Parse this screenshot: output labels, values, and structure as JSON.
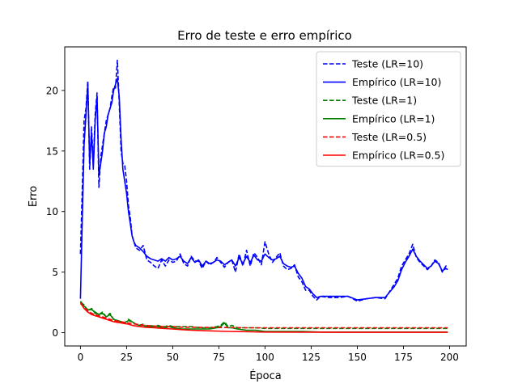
{
  "chart_data": {
    "type": "line",
    "title": "Erro de teste e erro empírico",
    "xlabel": "Época",
    "ylabel": "Erro",
    "xlim": [
      -8.5,
      209
    ],
    "ylim": [
      -1.1,
      23.6
    ],
    "xticks": [
      0,
      25,
      50,
      75,
      100,
      125,
      150,
      175,
      200
    ],
    "yticks": [
      0,
      5,
      10,
      15,
      20
    ],
    "grid": false,
    "legend_position": "top-right",
    "series": [
      {
        "name": "Teste (LR=10)",
        "color": "#0000ff",
        "style": "dashed",
        "x": [
          0,
          1,
          2,
          3,
          4,
          5,
          6,
          7,
          8,
          9,
          10,
          11,
          12,
          13,
          14,
          15,
          16,
          17,
          18,
          19,
          20,
          21,
          22,
          23,
          24,
          25,
          26,
          27,
          28,
          29,
          30,
          32,
          34,
          36,
          38,
          40,
          42,
          44,
          46,
          48,
          50,
          52,
          54,
          56,
          58,
          60,
          62,
          64,
          66,
          68,
          70,
          72,
          74,
          76,
          78,
          80,
          82,
          84,
          86,
          88,
          90,
          92,
          94,
          96,
          98,
          100,
          102,
          104,
          106,
          108,
          110,
          112,
          114,
          116,
          118,
          120,
          122,
          124,
          126,
          128,
          130,
          135,
          140,
          145,
          150,
          155,
          160,
          165,
          170,
          172,
          174,
          176,
          178,
          180,
          182,
          184,
          186,
          188,
          190,
          192,
          194,
          196,
          198,
          199
        ],
        "values": [
          6.5,
          12.0,
          17.5,
          18.5,
          20.8,
          13.5,
          17.0,
          14.0,
          18.0,
          19.8,
          12.0,
          14.5,
          15.5,
          16.5,
          17.5,
          18.0,
          18.5,
          19.5,
          20.3,
          20.2,
          22.5,
          19.0,
          15.0,
          14.0,
          13.8,
          12.5,
          10.5,
          9.5,
          8.0,
          7.5,
          7.0,
          6.8,
          7.2,
          6.0,
          5.8,
          5.5,
          5.3,
          6.0,
          5.5,
          6.0,
          5.8,
          5.9,
          6.5,
          5.7,
          5.5,
          6.3,
          5.9,
          5.9,
          5.3,
          5.9,
          5.6,
          5.8,
          6.2,
          5.8,
          5.4,
          5.8,
          6.0,
          5.0,
          6.5,
          5.5,
          6.8,
          5.5,
          6.6,
          6.2,
          5.6,
          7.5,
          6.5,
          5.8,
          6.2,
          6.6,
          5.5,
          5.2,
          5.3,
          5.6,
          4.6,
          4.2,
          3.5,
          3.5,
          3.0,
          2.7,
          3.0,
          2.9,
          2.9,
          3.0,
          2.6,
          2.8,
          2.9,
          2.8,
          4.0,
          4.5,
          5.5,
          6.0,
          6.5,
          7.3,
          6.2,
          5.8,
          5.5,
          5.2,
          5.5,
          6.0,
          5.8,
          5.0,
          5.5,
          5.5
        ]
      },
      {
        "name": "Empírico (LR=10)",
        "color": "#0000ff",
        "style": "solid",
        "x": [
          0,
          1,
          2,
          3,
          4,
          5,
          6,
          7,
          8,
          9,
          10,
          11,
          12,
          13,
          14,
          15,
          16,
          17,
          18,
          19,
          20,
          21,
          22,
          23,
          24,
          25,
          26,
          27,
          28,
          29,
          30,
          32,
          34,
          36,
          38,
          40,
          42,
          44,
          46,
          48,
          50,
          52,
          54,
          56,
          58,
          60,
          62,
          64,
          66,
          68,
          70,
          72,
          74,
          76,
          78,
          80,
          82,
          84,
          86,
          88,
          90,
          92,
          94,
          96,
          98,
          100,
          102,
          104,
          106,
          108,
          110,
          112,
          114,
          116,
          118,
          120,
          122,
          124,
          126,
          128,
          130,
          135,
          140,
          145,
          150,
          155,
          160,
          165,
          170,
          172,
          174,
          176,
          178,
          180,
          182,
          184,
          186,
          188,
          190,
          192,
          194,
          196,
          198,
          199
        ],
        "values": [
          2.8,
          9.5,
          15.5,
          18.0,
          20.5,
          14.0,
          16.5,
          13.5,
          17.5,
          19.5,
          13.0,
          14.0,
          15.0,
          16.5,
          17.0,
          18.0,
          18.5,
          19.0,
          20.0,
          20.5,
          21.0,
          19.5,
          16.0,
          13.5,
          12.5,
          11.5,
          10.0,
          9.0,
          8.0,
          7.5,
          7.2,
          7.0,
          6.7,
          6.3,
          6.1,
          6.0,
          5.9,
          6.1,
          5.9,
          6.2,
          6.0,
          6.1,
          6.3,
          5.9,
          5.7,
          6.2,
          5.8,
          6.0,
          5.5,
          5.9,
          5.7,
          5.8,
          6.0,
          5.9,
          5.6,
          5.8,
          6.0,
          5.5,
          6.2,
          5.7,
          6.3,
          5.8,
          6.4,
          6.0,
          5.9,
          6.5,
          6.2,
          6.0,
          6.1,
          6.3,
          5.7,
          5.5,
          5.4,
          5.5,
          4.9,
          4.5,
          3.8,
          3.6,
          3.2,
          2.9,
          3.0,
          3.0,
          3.0,
          3.0,
          2.7,
          2.8,
          2.9,
          2.9,
          3.8,
          4.3,
          5.2,
          5.8,
          6.3,
          6.9,
          6.3,
          5.9,
          5.6,
          5.3,
          5.5,
          5.9,
          5.7,
          5.1,
          5.3,
          5.2
        ]
      },
      {
        "name": "Teste (LR=1)",
        "color": "#008000",
        "style": "dashed",
        "x": [
          0,
          2,
          4,
          6,
          8,
          10,
          12,
          14,
          16,
          18,
          20,
          22,
          24,
          26,
          28,
          30,
          32,
          34,
          36,
          38,
          40,
          42,
          44,
          46,
          48,
          50,
          55,
          60,
          65,
          70,
          74,
          76,
          78,
          80,
          82,
          85,
          90,
          95,
          100,
          110,
          120,
          130,
          140,
          150,
          160,
          170,
          180,
          190,
          199
        ],
        "values": [
          2.5,
          2.3,
          1.8,
          2.0,
          1.6,
          1.5,
          1.7,
          1.3,
          1.6,
          1.1,
          1.0,
          0.9,
          0.8,
          1.1,
          0.9,
          0.7,
          0.6,
          0.7,
          0.5,
          0.6,
          0.5,
          0.6,
          0.5,
          0.5,
          0.6,
          0.5,
          0.5,
          0.5,
          0.4,
          0.4,
          0.5,
          0.6,
          0.9,
          0.5,
          0.6,
          0.4,
          0.4,
          0.4,
          0.35,
          0.35,
          0.35,
          0.35,
          0.35,
          0.35,
          0.35,
          0.35,
          0.35,
          0.35,
          0.35
        ]
      },
      {
        "name": "Empírico (LR=1)",
        "color": "#008000",
        "style": "solid",
        "x": [
          0,
          2,
          4,
          6,
          8,
          10,
          12,
          14,
          16,
          18,
          20,
          22,
          24,
          26,
          28,
          30,
          32,
          34,
          36,
          38,
          40,
          42,
          44,
          46,
          48,
          50,
          55,
          60,
          65,
          70,
          74,
          76,
          78,
          80,
          82,
          85,
          90,
          95,
          100,
          110,
          120,
          130,
          140,
          150,
          160,
          170,
          180,
          190,
          199
        ],
        "values": [
          2.6,
          2.2,
          1.9,
          1.9,
          1.7,
          1.5,
          1.6,
          1.3,
          1.5,
          1.1,
          1.0,
          0.9,
          0.8,
          1.0,
          0.9,
          0.7,
          0.6,
          0.6,
          0.5,
          0.5,
          0.5,
          0.5,
          0.4,
          0.4,
          0.5,
          0.4,
          0.3,
          0.3,
          0.3,
          0.3,
          0.4,
          0.5,
          0.8,
          0.4,
          0.4,
          0.3,
          0.2,
          0.2,
          0.1,
          0.1,
          0.1,
          0.05,
          0.05,
          0.05,
          0.05,
          0.05,
          0.05,
          0.05,
          0.05
        ]
      },
      {
        "name": "Teste (LR=0.5)",
        "color": "#ff0000",
        "style": "dashed",
        "x": [
          0,
          2,
          4,
          6,
          8,
          10,
          12,
          14,
          16,
          18,
          20,
          22,
          24,
          26,
          28,
          30,
          35,
          40,
          45,
          50,
          55,
          60,
          70,
          80,
          90,
          100,
          120,
          140,
          160,
          180,
          199
        ],
        "values": [
          2.4,
          2.1,
          1.8,
          1.6,
          1.5,
          1.4,
          1.3,
          1.2,
          1.1,
          1.0,
          0.95,
          0.9,
          0.85,
          0.8,
          0.75,
          0.7,
          0.6,
          0.55,
          0.5,
          0.5,
          0.45,
          0.45,
          0.42,
          0.42,
          0.4,
          0.4,
          0.4,
          0.4,
          0.4,
          0.4,
          0.4
        ]
      },
      {
        "name": "Empírico (LR=0.5)",
        "color": "#ff0000",
        "style": "solid",
        "x": [
          0,
          2,
          4,
          6,
          8,
          10,
          12,
          14,
          16,
          18,
          20,
          22,
          24,
          26,
          28,
          30,
          35,
          40,
          45,
          50,
          55,
          60,
          70,
          80,
          90,
          100,
          120,
          140,
          160,
          180,
          199
        ],
        "values": [
          2.5,
          2.0,
          1.7,
          1.5,
          1.4,
          1.3,
          1.2,
          1.1,
          1.0,
          0.9,
          0.85,
          0.8,
          0.75,
          0.7,
          0.6,
          0.55,
          0.45,
          0.4,
          0.35,
          0.3,
          0.25,
          0.2,
          0.15,
          0.1,
          0.08,
          0.05,
          0.04,
          0.03,
          0.03,
          0.03,
          0.03
        ]
      }
    ]
  }
}
